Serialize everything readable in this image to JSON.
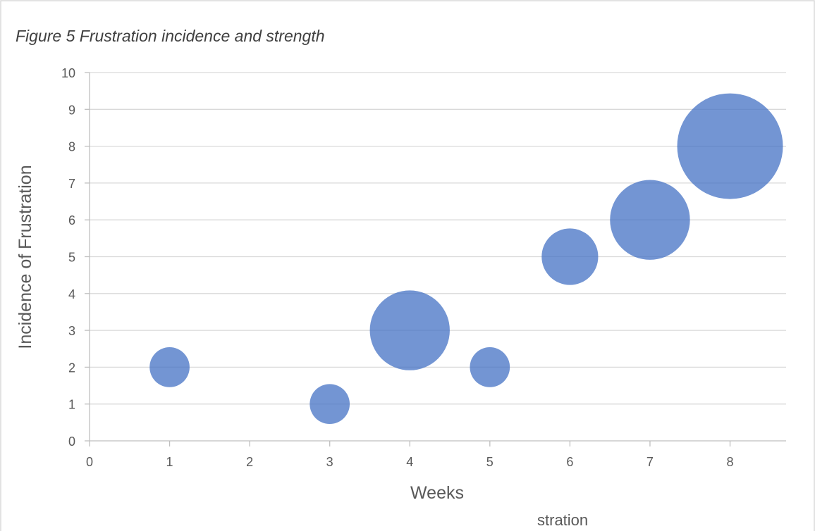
{
  "figure_caption": "Figure 5 Frustration incidence and strength",
  "cut_off_text": "stration",
  "chart_data": {
    "type": "scatter",
    "variant": "bubble",
    "title": "",
    "xlabel": "Weeks",
    "ylabel": "Incidence of Frustration",
    "xlim": [
      0,
      8.7
    ],
    "ylim": [
      0,
      10
    ],
    "x_ticks": [
      0,
      1,
      2,
      3,
      4,
      5,
      6,
      7,
      8
    ],
    "y_ticks": [
      0,
      1,
      2,
      3,
      4,
      5,
      6,
      7,
      8,
      9,
      10
    ],
    "grid": "horizontal",
    "legend": "none",
    "series": [
      {
        "points": [
          {
            "x": 1,
            "y": 2,
            "size": 1
          },
          {
            "x": 3,
            "y": 1,
            "size": 1
          },
          {
            "x": 4,
            "y": 3,
            "size": 4
          },
          {
            "x": 5,
            "y": 2,
            "size": 1
          },
          {
            "x": 6,
            "y": 5,
            "size": 2
          },
          {
            "x": 7,
            "y": 6,
            "size": 4
          },
          {
            "x": 8,
            "y": 8,
            "size": 7
          }
        ]
      }
    ],
    "colors": {
      "bubble": "#4472c4",
      "grid": "#d9d9d9",
      "axis": "#bfbfbf",
      "text": "#595959"
    }
  }
}
